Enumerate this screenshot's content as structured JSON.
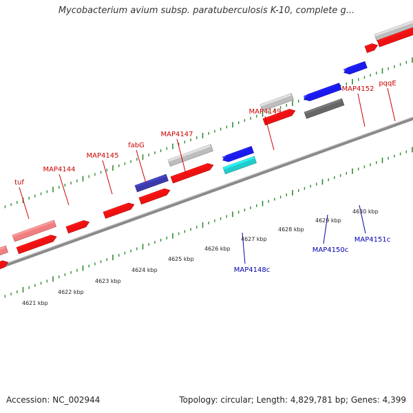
{
  "title": "Mycobacterium avium subsp. paratuberculosis K-10, complete g...",
  "footer": {
    "accession": "Accession: NC_002944",
    "summary": "Topology: circular; Length: 4,829,781 bp; Genes: 4,399"
  },
  "colors": {
    "backbone": "#8a8a8a",
    "tick": "#2e8b2e",
    "forward_label": "#cc0000",
    "reverse_label": "#0000aa",
    "red_gene": "#ee1111",
    "pink_gene": "#f07f7f",
    "blue_gene": "#1a1aee",
    "cyan_gene": "#22cccc",
    "gray_gene": "#bdbdbd",
    "dark_gray_gene": "#666666",
    "navy_gene": "#3a3aa8"
  },
  "scale_labels": [
    "4621 kbp",
    "4622 kbp",
    "4623 kbp",
    "4624 kbp",
    "4625 kbp",
    "4626 kbp",
    "4627 kbp",
    "4628 kbp",
    "4629 kbp",
    "4630 kbp"
  ],
  "forward_genes": [
    "tuf",
    "MAP4144",
    "MAP4145",
    "fabG",
    "MAP4147",
    "MAP4149",
    "MAP4152",
    "pqqE"
  ],
  "reverse_genes": [
    "MAP4148c",
    "MAP4150c",
    "MAP4151c"
  ]
}
